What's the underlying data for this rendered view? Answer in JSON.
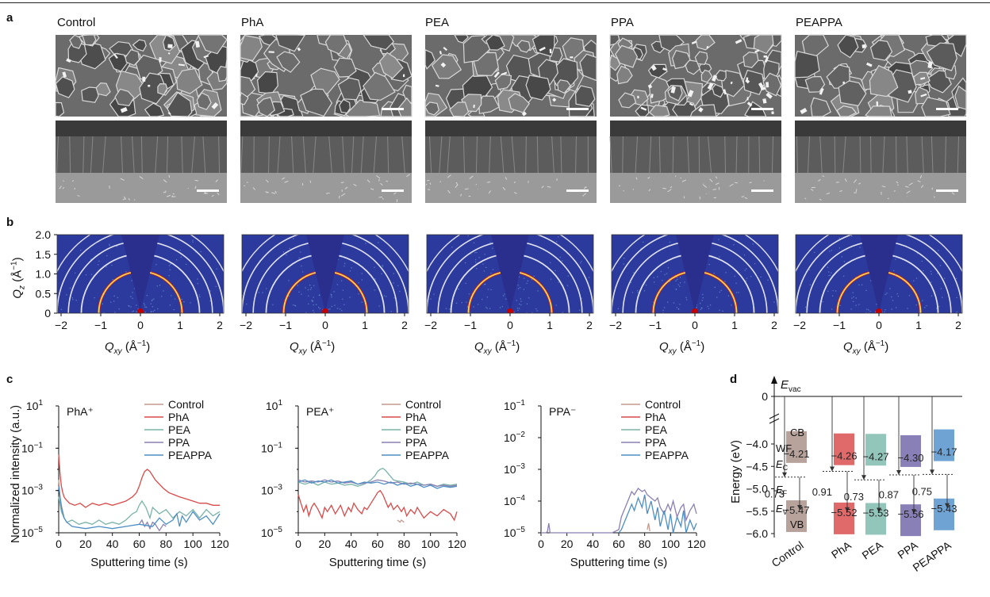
{
  "panel_letters": {
    "a": "a",
    "b": "b",
    "c": "c",
    "d": "d"
  },
  "sem": {
    "samples": [
      "Control",
      "PhA",
      "PEA",
      "PPA",
      "PEAPPA"
    ]
  },
  "giwaxs": {
    "ylabel_main": "Q",
    "ylabel_sub": "z",
    "ylabel_unit": " (Å",
    "ylabel_exp": "−1",
    "ylabel_close": ")",
    "xlabel_main": "Q",
    "xlabel_sub": "xy",
    "xlabel_unit": " (Å",
    "xlabel_exp": "−1",
    "xlabel_close": ")",
    "y_ticks": [
      "2.0",
      "1.5",
      "1.0",
      "0.5",
      "0"
    ],
    "x_ticks": [
      "−2",
      "−1",
      "0",
      "1",
      "2"
    ],
    "colors": {
      "background": "#2b3a9c",
      "cone": "#2a2f8e",
      "ring": "#e9e9f2",
      "hot": "#c81e1e"
    }
  },
  "chart_data": [
    {
      "type": "line",
      "title": "PhA⁺",
      "xlabel": "Sputtering time (s)",
      "ylabel": "Normalized intensity (a.u.)",
      "xlim": [
        0,
        120
      ],
      "ylim_exp": [
        -5,
        1
      ],
      "x_ticks": [
        "0",
        "20",
        "40",
        "60",
        "80",
        "100",
        "120"
      ],
      "y_ticks": [
        {
          "base": "10",
          "exp": "1",
          "e": 1
        },
        {
          "base": "10",
          "exp": "−1",
          "e": -1
        },
        {
          "base": "10",
          "exp": "−3",
          "e": -3
        },
        {
          "base": "10",
          "exp": "−5",
          "e": -5
        }
      ],
      "legend": [
        "Control",
        "PhA",
        "PEA",
        "PPA",
        "PEAPPA"
      ],
      "series": [
        {
          "name": "Control",
          "color": "#c49a8e",
          "x": [
            0,
            1,
            2,
            3,
            4
          ],
          "log10y": [
            -2.5,
            -3.3,
            -3.7,
            -4.0,
            -4.3
          ]
        },
        {
          "name": "PhA",
          "color": "#d94a4a",
          "x": [
            0,
            1,
            2,
            3,
            4,
            5,
            8,
            12,
            16,
            20,
            25,
            30,
            35,
            40,
            45,
            50,
            55,
            58,
            60,
            62,
            64,
            66,
            68,
            70,
            72,
            75,
            78,
            82,
            86,
            90,
            95,
            100,
            105,
            110,
            115,
            120
          ],
          "log10y": [
            -1.3,
            -2.2,
            -2.8,
            -3.1,
            -3.3,
            -3.4,
            -3.6,
            -3.7,
            -3.6,
            -3.8,
            -3.6,
            -3.7,
            -3.6,
            -3.7,
            -3.6,
            -3.5,
            -3.3,
            -3.1,
            -2.8,
            -2.4,
            -2.1,
            -2.0,
            -2.1,
            -2.3,
            -2.5,
            -2.7,
            -2.9,
            -3.1,
            -3.2,
            -3.3,
            -3.4,
            -3.5,
            -3.6,
            -3.6,
            -3.7,
            -3.7
          ]
        },
        {
          "name": "PEA",
          "color": "#7ab3a8",
          "x": [
            0,
            2,
            4,
            6,
            10,
            15,
            20,
            25,
            30,
            35,
            40,
            45,
            50,
            55,
            58,
            60,
            62,
            65,
            68,
            70,
            75,
            80,
            85,
            90,
            95,
            100,
            105,
            110,
            115,
            120
          ],
          "log10y": [
            -3.3,
            -4.0,
            -4.3,
            -4.5,
            -4.4,
            -4.6,
            -4.5,
            -4.6,
            -4.4,
            -4.6,
            -4.5,
            -4.6,
            -4.4,
            -4.1,
            -4.0,
            -3.7,
            -3.5,
            -3.8,
            -4.3,
            -3.8,
            -4.1,
            -3.9,
            -4.3,
            -4.0,
            -4.2,
            -3.9,
            -4.3,
            -3.9,
            -4.2,
            -4.0
          ]
        },
        {
          "name": "PPA",
          "color": "#8b7fb3",
          "x": [
            60,
            62,
            64,
            66,
            68,
            70,
            72,
            75,
            78,
            80
          ],
          "log10y": [
            -4.6,
            -4.4,
            -4.7,
            -4.5,
            -4.8,
            -4.5,
            -4.6,
            -4.9,
            -4.6,
            -4.7
          ]
        },
        {
          "name": "PEAPPA",
          "color": "#4d8ec4",
          "x": [
            0,
            2,
            4,
            6,
            8,
            10,
            20,
            30,
            40,
            50,
            60,
            70,
            75,
            80,
            85,
            88,
            90,
            92,
            95,
            100,
            105,
            110,
            115,
            120
          ],
          "log10y": [
            -2.8,
            -3.8,
            -4.3,
            -4.5,
            -4.6,
            -4.7,
            -4.8,
            -4.7,
            -4.8,
            -4.7,
            -4.6,
            -4.7,
            -4.3,
            -4.6,
            -4.4,
            -4.1,
            -4.7,
            -4.2,
            -4.5,
            -4.0,
            -4.4,
            -4.2,
            -4.6,
            -4.1
          ]
        }
      ]
    },
    {
      "type": "line",
      "title": "PEA⁺",
      "xlabel": "Sputtering time (s)",
      "ylabel": "",
      "xlim": [
        0,
        120
      ],
      "ylim_exp": [
        -5,
        1
      ],
      "x_ticks": [
        "0",
        "20",
        "40",
        "60",
        "80",
        "100",
        "120"
      ],
      "y_ticks": [
        {
          "base": "10",
          "exp": "1",
          "e": 1
        },
        {
          "base": "10",
          "exp": "−1",
          "e": -1
        },
        {
          "base": "10",
          "exp": "−3",
          "e": -3
        },
        {
          "base": "10",
          "exp": "−5",
          "e": -5
        }
      ],
      "legend": [
        "Control",
        "PhA",
        "PEA",
        "PPA",
        "PEAPPA"
      ],
      "series": [
        {
          "name": "Control",
          "color": "#c49a8e",
          "x": [
            75,
            77,
            78,
            80
          ],
          "log10y": [
            -4.4,
            -4.5,
            -4.4,
            -4.5
          ]
        },
        {
          "name": "PhA",
          "color": "#d94a4a",
          "x": [
            0,
            2,
            4,
            6,
            8,
            10,
            12,
            15,
            18,
            20,
            22,
            25,
            28,
            30,
            32,
            35,
            38,
            40,
            42,
            45,
            48,
            50,
            52,
            55,
            58,
            60,
            62,
            64,
            66,
            68,
            70,
            72,
            75,
            78,
            80,
            82,
            85,
            88,
            90,
            95,
            100,
            105,
            110,
            115,
            118,
            120
          ],
          "log10y": [
            -3.2,
            -3.6,
            -4.0,
            -3.7,
            -4.2,
            -3.8,
            -3.6,
            -3.9,
            -4.3,
            -3.8,
            -4.0,
            -3.7,
            -4.1,
            -3.9,
            -3.7,
            -4.2,
            -3.8,
            -4.0,
            -3.6,
            -3.9,
            -4.1,
            -3.8,
            -3.9,
            -3.6,
            -3.3,
            -3.1,
            -3.0,
            -3.2,
            -3.5,
            -3.8,
            -3.6,
            -3.9,
            -3.7,
            -4.0,
            -3.8,
            -4.2,
            -3.9,
            -4.1,
            -3.8,
            -4.3,
            -4.0,
            -4.2,
            -3.9,
            -4.1,
            -4.4,
            -4.0
          ]
        },
        {
          "name": "PEA",
          "color": "#7ab3a8",
          "x": [
            0,
            5,
            10,
            15,
            20,
            25,
            30,
            35,
            40,
            45,
            50,
            55,
            58,
            60,
            62,
            64,
            66,
            68,
            70,
            72,
            75,
            80,
            85,
            90,
            95,
            100,
            105,
            110,
            115,
            120
          ],
          "log10y": [
            -2.6,
            -2.7,
            -2.6,
            -2.75,
            -2.6,
            -2.7,
            -2.65,
            -2.75,
            -2.7,
            -2.8,
            -2.7,
            -2.5,
            -2.3,
            -2.1,
            -2.0,
            -1.95,
            -2.05,
            -2.2,
            -2.35,
            -2.5,
            -2.55,
            -2.6,
            -2.7,
            -2.6,
            -2.75,
            -2.7,
            -2.8,
            -2.7,
            -2.75,
            -2.7
          ]
        },
        {
          "name": "PPA",
          "color": "#8b7fb3",
          "x": [
            0,
            5,
            10,
            15,
            20,
            25,
            30,
            35,
            40,
            45,
            50,
            55,
            60,
            65,
            70,
            75,
            80,
            85,
            90,
            95,
            100,
            105,
            110,
            115,
            120
          ],
          "log10y": [
            -2.5,
            -2.6,
            -2.55,
            -2.6,
            -2.5,
            -2.6,
            -2.55,
            -2.65,
            -2.6,
            -2.7,
            -2.65,
            -2.6,
            -2.5,
            -2.55,
            -2.65,
            -2.6,
            -2.7,
            -2.65,
            -2.7,
            -2.75,
            -2.7,
            -2.8,
            -2.75,
            -2.8,
            -2.75
          ]
        },
        {
          "name": "PEAPPA",
          "color": "#4d8ec4",
          "x": [
            0,
            5,
            10,
            15,
            20,
            25,
            30,
            35,
            40,
            45,
            50,
            55,
            60,
            65,
            70,
            75,
            80,
            85,
            90,
            95,
            100,
            105,
            110,
            115,
            120
          ],
          "log10y": [
            -2.6,
            -2.5,
            -2.65,
            -2.55,
            -2.6,
            -2.5,
            -2.65,
            -2.6,
            -2.55,
            -2.7,
            -2.6,
            -2.65,
            -2.6,
            -2.7,
            -2.6,
            -2.75,
            -2.65,
            -2.8,
            -2.7,
            -2.85,
            -2.75,
            -2.9,
            -2.8,
            -2.85,
            -2.8
          ]
        }
      ]
    },
    {
      "type": "line",
      "title": "PPA⁻",
      "xlabel": "Sputtering time (s)",
      "ylabel": "",
      "xlim": [
        0,
        120
      ],
      "ylim_exp": [
        -5,
        -1
      ],
      "x_ticks": [
        "0",
        "20",
        "40",
        "60",
        "80",
        "100",
        "120"
      ],
      "y_ticks": [
        {
          "base": "10",
          "exp": "−1",
          "e": -1
        },
        {
          "base": "10",
          "exp": "−2",
          "e": -2
        },
        {
          "base": "10",
          "exp": "−3",
          "e": -3
        },
        {
          "base": "10",
          "exp": "−4",
          "e": -4
        },
        {
          "base": "10",
          "exp": "−5",
          "e": -5
        }
      ],
      "legend": [
        "Control",
        "PhA",
        "PEA",
        "PPA",
        "PEAPPA"
      ],
      "series": [
        {
          "name": "Control",
          "color": "#c49a8e",
          "x": [
            82,
            83,
            84
          ],
          "log10y": [
            -4.9,
            -4.7,
            -4.95
          ]
        },
        {
          "name": "PhA",
          "color": "#d94a4a",
          "x": [],
          "log10y": []
        },
        {
          "name": "PEA",
          "color": "#7ab3a8",
          "x": [],
          "log10y": []
        },
        {
          "name": "PPA",
          "color": "#8b7fb3",
          "x": [
            0,
            1,
            2,
            3,
            4,
            5,
            6,
            7,
            8,
            9,
            10,
            12,
            15,
            20,
            25,
            30,
            35,
            40,
            45,
            50,
            55,
            60,
            62,
            65,
            68,
            70,
            72,
            75,
            78,
            80,
            82,
            85,
            88,
            90,
            92,
            95,
            98,
            100,
            102,
            105,
            108,
            110,
            112,
            115,
            118,
            120
          ],
          "log10y": [
            -5,
            -5,
            -5,
            -5,
            -5,
            -4.95,
            -4.7,
            -5,
            -5,
            -5,
            -5,
            -5,
            -5,
            -5,
            -5,
            -5,
            -5,
            -5,
            -5,
            -5,
            -5,
            -4.9,
            -4.5,
            -4.2,
            -3.9,
            -3.7,
            -3.8,
            -3.6,
            -3.7,
            -3.65,
            -3.8,
            -3.9,
            -4.0,
            -3.9,
            -4.2,
            -4.4,
            -4.1,
            -4.3,
            -4.0,
            -4.5,
            -4.2,
            -4.1,
            -4.6,
            -4.3,
            -4.1,
            -4.4
          ]
        },
        {
          "name": "PEAPPA",
          "color": "#4d8ec4",
          "x": [
            60,
            62,
            65,
            68,
            70,
            72,
            75,
            78,
            80,
            82,
            85,
            88,
            90,
            92,
            95,
            98,
            100,
            102,
            105,
            108,
            110,
            112,
            115,
            118,
            120
          ],
          "log10y": [
            -5,
            -4.9,
            -4.6,
            -4.3,
            -4.1,
            -4.3,
            -3.9,
            -4.2,
            -3.8,
            -4.4,
            -4.0,
            -4.6,
            -4.2,
            -4.8,
            -4.3,
            -4.9,
            -4.4,
            -5,
            -4.5,
            -4.8,
            -4.3,
            -5,
            -4.6,
            -4.9,
            -4.7
          ]
        }
      ]
    }
  ],
  "energy": {
    "ylabel": "Energy (eV)",
    "evac_main": "E",
    "evac_sub": "vac",
    "ec_main": "E",
    "ec_sub": "C",
    "ef_main": "E",
    "ef_sub": "F",
    "ev_main": "E",
    "ev_sub": "V",
    "wf_label": "WF",
    "cb_label": "CB",
    "vb_label": "VB",
    "y_ticks": [
      "0",
      "−4.0",
      "−4.5",
      "−5.0",
      "−5.5",
      "−6.0"
    ],
    "samples": [
      {
        "name": "Control",
        "color": "#b7a39b",
        "cb": -4.21,
        "cb_text": "−4.21",
        "vb": -5.47,
        "vb_text": "−5.47",
        "gap_text": "0.73",
        "ef": -4.74
      },
      {
        "name": "PhA",
        "color": "#e06a6a",
        "cb": -4.26,
        "cb_text": "−4.26",
        "vb": -5.52,
        "vb_text": "−5.52",
        "gap_text": "0.91",
        "ef": -4.61
      },
      {
        "name": "PEA",
        "color": "#93c6bb",
        "cb": -4.27,
        "cb_text": "−4.27",
        "vb": -5.53,
        "vb_text": "−5.53",
        "gap_text": "0.73",
        "ef": -4.8
      },
      {
        "name": "PPA",
        "color": "#8a80b8",
        "cb": -4.3,
        "cb_text": "−4.30",
        "vb": -5.56,
        "vb_text": "−5.56",
        "gap_text": "0.87",
        "ef": -4.69
      },
      {
        "name": "PEAPPA",
        "color": "#6fa3d4",
        "cb": -4.17,
        "cb_text": "−4.17",
        "vb": -5.43,
        "vb_text": "−5.43",
        "gap_text": "0.75",
        "ef": -4.68
      }
    ]
  }
}
